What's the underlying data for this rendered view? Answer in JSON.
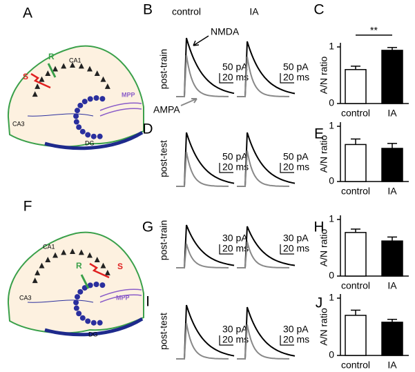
{
  "diagrams": [
    {
      "panel": "A",
      "labels": {
        "ca1": "CA1",
        "ca3": "CA3",
        "dg": "DG",
        "mpp": "MPP",
        "stim": "S",
        "rec": "R"
      }
    },
    {
      "panel": "F",
      "labels": {
        "ca1": "CA1",
        "ca3": "CA3",
        "dg": "DG",
        "mpp": "MPP",
        "stim": "S",
        "rec": "R"
      }
    }
  ],
  "traces": {
    "columns": [
      "control",
      "IA"
    ],
    "rows": [
      {
        "panel": "B",
        "condition": "post-train",
        "scale": [
          "50 pA",
          "20 ms"
        ],
        "annotations": [
          "NMDA",
          "AMPA"
        ]
      },
      {
        "panel": "D",
        "condition": "post-test",
        "scale": [
          "50 pA",
          "20 ms"
        ]
      },
      {
        "panel": "G",
        "condition": "post-train",
        "scale": [
          "30 pA",
          "20 ms"
        ]
      },
      {
        "panel": "I",
        "condition": "post-test",
        "scale": [
          "30 pA",
          "20 ms"
        ]
      }
    ]
  },
  "chart_data": [
    {
      "type": "bar",
      "panel": "C",
      "ylabel": "A/N ratio",
      "categories": [
        "control",
        "IA"
      ],
      "values": [
        0.6,
        0.94
      ],
      "errors": [
        0.06,
        0.05
      ],
      "colors": [
        "#ffffff",
        "#000000"
      ],
      "ylim": [
        0,
        1
      ],
      "yticks": [
        0,
        1
      ],
      "significance": "**"
    },
    {
      "type": "bar",
      "panel": "E",
      "ylabel": "A/N ratio",
      "categories": [
        "control",
        "IA"
      ],
      "values": [
        0.67,
        0.6
      ],
      "errors": [
        0.1,
        0.09
      ],
      "colors": [
        "#ffffff",
        "#000000"
      ],
      "ylim": [
        0,
        1
      ],
      "yticks": [
        0,
        1
      ]
    },
    {
      "type": "bar",
      "panel": "H",
      "ylabel": "A/N ratio",
      "categories": [
        "control",
        "IA"
      ],
      "values": [
        0.77,
        0.62
      ],
      "errors": [
        0.06,
        0.07
      ],
      "colors": [
        "#ffffff",
        "#000000"
      ],
      "ylim": [
        0,
        1
      ],
      "yticks": [
        0,
        1
      ]
    },
    {
      "type": "bar",
      "panel": "J",
      "ylabel": "A/N ratio",
      "categories": [
        "control",
        "IA"
      ],
      "values": [
        0.7,
        0.58
      ],
      "errors": [
        0.09,
        0.05
      ],
      "colors": [
        "#ffffff",
        "#000000"
      ],
      "ylim": [
        0,
        1
      ],
      "yticks": [
        0,
        1
      ]
    }
  ]
}
